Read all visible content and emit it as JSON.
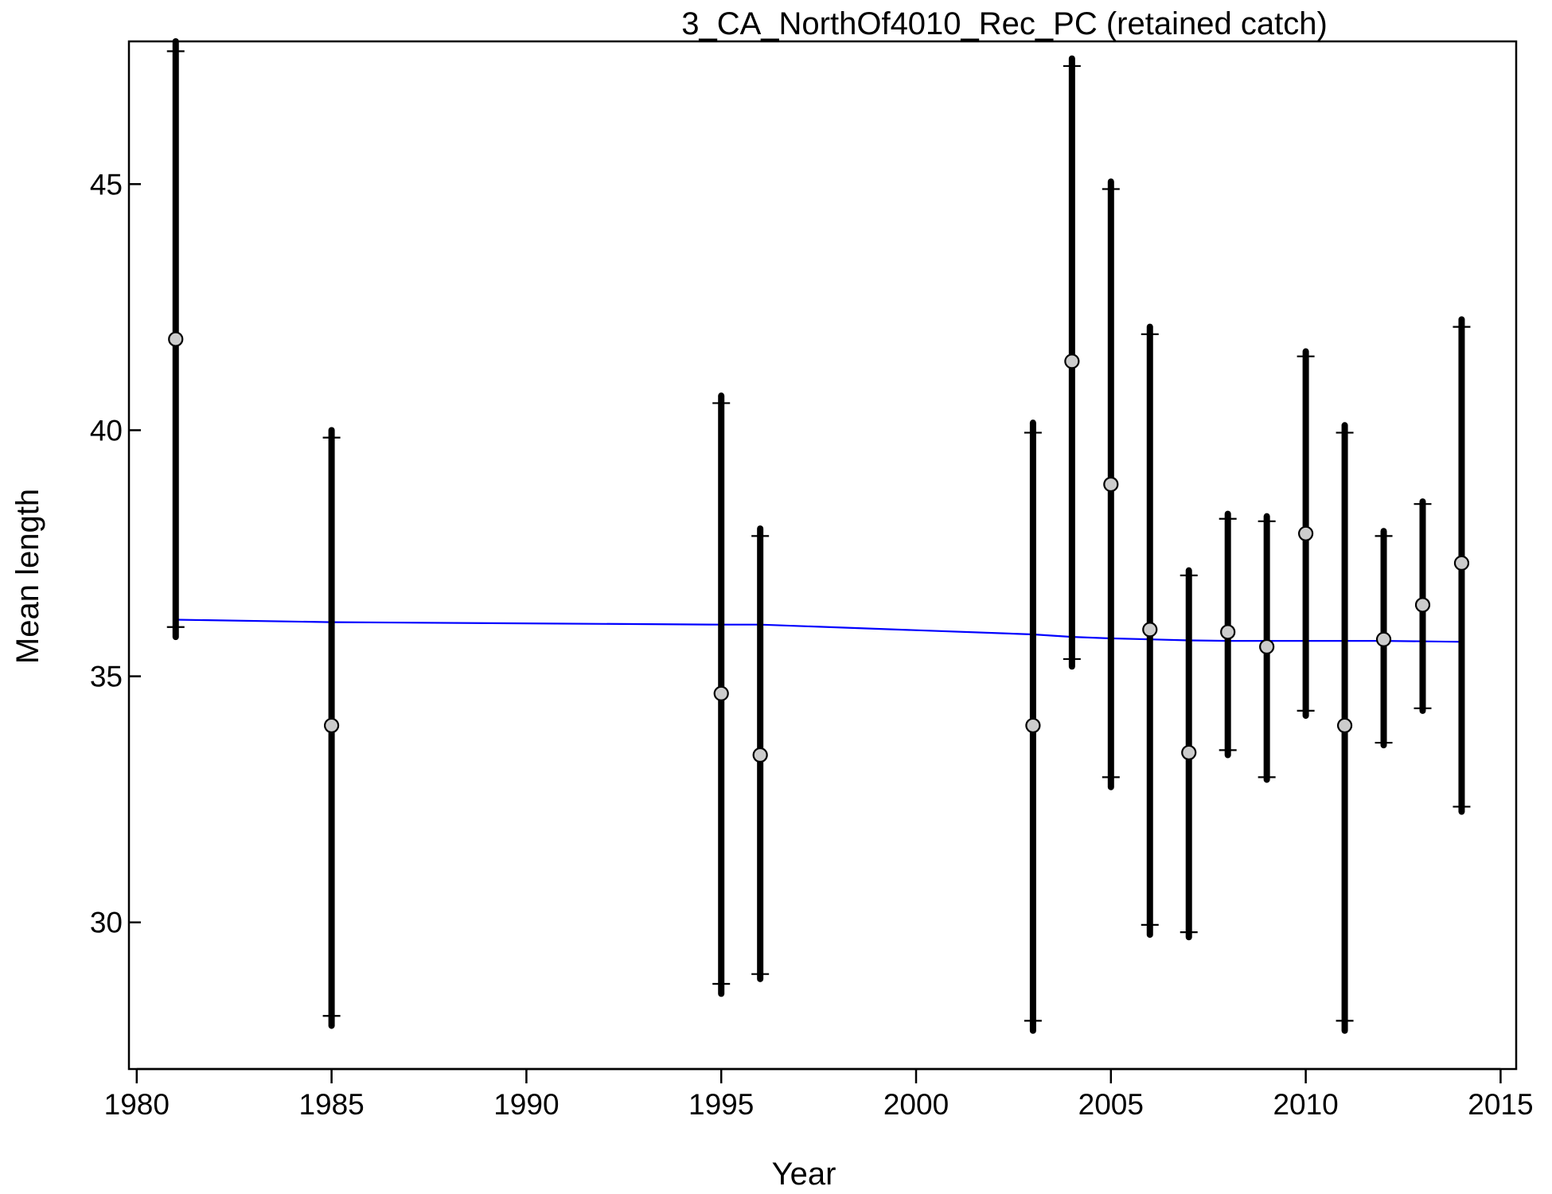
{
  "chart_data": {
    "type": "scatter",
    "title": "3_CA_NorthOf4010_Rec_PC (retained catch)",
    "xlabel": "Year",
    "ylabel": "Mean length",
    "xlim": [
      1979.8,
      2015.4
    ],
    "ylim": [
      27.02,
      47.9
    ],
    "x_ticks": [
      1980,
      1985,
      1990,
      1995,
      2000,
      2005,
      2010,
      2015
    ],
    "y_ticks": [
      30,
      35,
      40,
      45
    ],
    "grid": false,
    "colors": {
      "points_fill": "#cccccc",
      "points_stroke": "#000000",
      "error_bars": "#000000",
      "expected_line": "#0000ff"
    },
    "observed": [
      {
        "year": 1981,
        "mean": 41.85,
        "inner_lo": 36.0,
        "inner_hi": 47.7,
        "outer_lo": 35.8,
        "outer_hi": 47.9
      },
      {
        "year": 1985,
        "mean": 34.0,
        "inner_lo": 28.1,
        "inner_hi": 39.85,
        "outer_lo": 27.9,
        "outer_hi": 40.0
      },
      {
        "year": 1995,
        "mean": 34.65,
        "inner_lo": 28.75,
        "inner_hi": 40.55,
        "outer_lo": 28.55,
        "outer_hi": 40.7
      },
      {
        "year": 1996,
        "mean": 33.4,
        "inner_lo": 28.95,
        "inner_hi": 37.85,
        "outer_lo": 28.85,
        "outer_hi": 38.0
      },
      {
        "year": 2003,
        "mean": 34.0,
        "inner_lo": 28.0,
        "inner_hi": 39.95,
        "outer_lo": 27.8,
        "outer_hi": 40.15
      },
      {
        "year": 2004,
        "mean": 41.4,
        "inner_lo": 35.35,
        "inner_hi": 47.4,
        "outer_lo": 35.2,
        "outer_hi": 47.55
      },
      {
        "year": 2005,
        "mean": 38.9,
        "inner_lo": 32.95,
        "inner_hi": 44.9,
        "outer_lo": 32.75,
        "outer_hi": 45.05
      },
      {
        "year": 2006,
        "mean": 35.95,
        "inner_lo": 29.95,
        "inner_hi": 41.95,
        "outer_lo": 29.75,
        "outer_hi": 42.1
      },
      {
        "year": 2007,
        "mean": 33.45,
        "inner_lo": 29.8,
        "inner_hi": 37.05,
        "outer_lo": 29.7,
        "outer_hi": 37.15
      },
      {
        "year": 2008,
        "mean": 35.9,
        "inner_lo": 33.5,
        "inner_hi": 38.2,
        "outer_lo": 33.4,
        "outer_hi": 38.3
      },
      {
        "year": 2009,
        "mean": 35.6,
        "inner_lo": 32.95,
        "inner_hi": 38.15,
        "outer_lo": 32.9,
        "outer_hi": 38.25
      },
      {
        "year": 2010,
        "mean": 37.9,
        "inner_lo": 34.3,
        "inner_hi": 41.5,
        "outer_lo": 34.2,
        "outer_hi": 41.6
      },
      {
        "year": 2011,
        "mean": 34.0,
        "inner_lo": 28.0,
        "inner_hi": 39.95,
        "outer_lo": 27.8,
        "outer_hi": 40.1
      },
      {
        "year": 2012,
        "mean": 35.75,
        "inner_lo": 33.65,
        "inner_hi": 37.85,
        "outer_lo": 33.6,
        "outer_hi": 37.95
      },
      {
        "year": 2013,
        "mean": 36.45,
        "inner_lo": 34.35,
        "inner_hi": 38.5,
        "outer_lo": 34.3,
        "outer_hi": 38.55
      },
      {
        "year": 2014,
        "mean": 37.3,
        "inner_lo": 32.35,
        "inner_hi": 42.1,
        "outer_lo": 32.25,
        "outer_hi": 42.25
      }
    ],
    "expected": {
      "x": [
        1981,
        1985,
        1995,
        1996,
        2003,
        2004,
        2005,
        2006,
        2007,
        2008,
        2009,
        2010,
        2011,
        2012,
        2013,
        2014
      ],
      "y": [
        36.15,
        36.1,
        36.05,
        36.05,
        35.85,
        35.8,
        35.77,
        35.75,
        35.73,
        35.72,
        35.72,
        35.72,
        35.72,
        35.72,
        35.71,
        35.7
      ]
    }
  }
}
